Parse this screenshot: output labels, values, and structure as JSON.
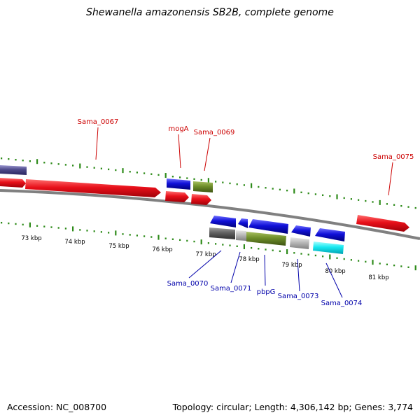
{
  "title": "Shewanella amazonensis SB2B, complete genome",
  "footer": {
    "accession": "Accession: NC_008700",
    "topology": "Topology: circular; Length: 4,306,142 bp; Genes: 3,774"
  },
  "tick_labels": [
    "73 kbp",
    "74 kbp",
    "75 kbp",
    "76 kbp",
    "77 kbp",
    "78 kbp",
    "79 kbp",
    "80 kbp",
    "81 kbp"
  ],
  "upper_gene_labels": [
    "Sama_0067",
    "mogA",
    "Sama_0069",
    "Sama_0075"
  ],
  "lower_gene_labels": [
    "Sama_0070",
    "Sama_0071",
    "pbpG",
    "Sama_0073",
    "Sama_0074"
  ],
  "colors": {
    "forward_cds": "#e8101a",
    "reverse_cds": "#1010d8",
    "green_feature": "#6e8e2a",
    "cyan_feature": "#18e8f0",
    "gray_feature": "#b8b8b8",
    "dark_gray_feature": "#606060",
    "slate_feature": "#4e4a8a",
    "tick_green": "#2e8b1a",
    "backbone": "#808080"
  }
}
